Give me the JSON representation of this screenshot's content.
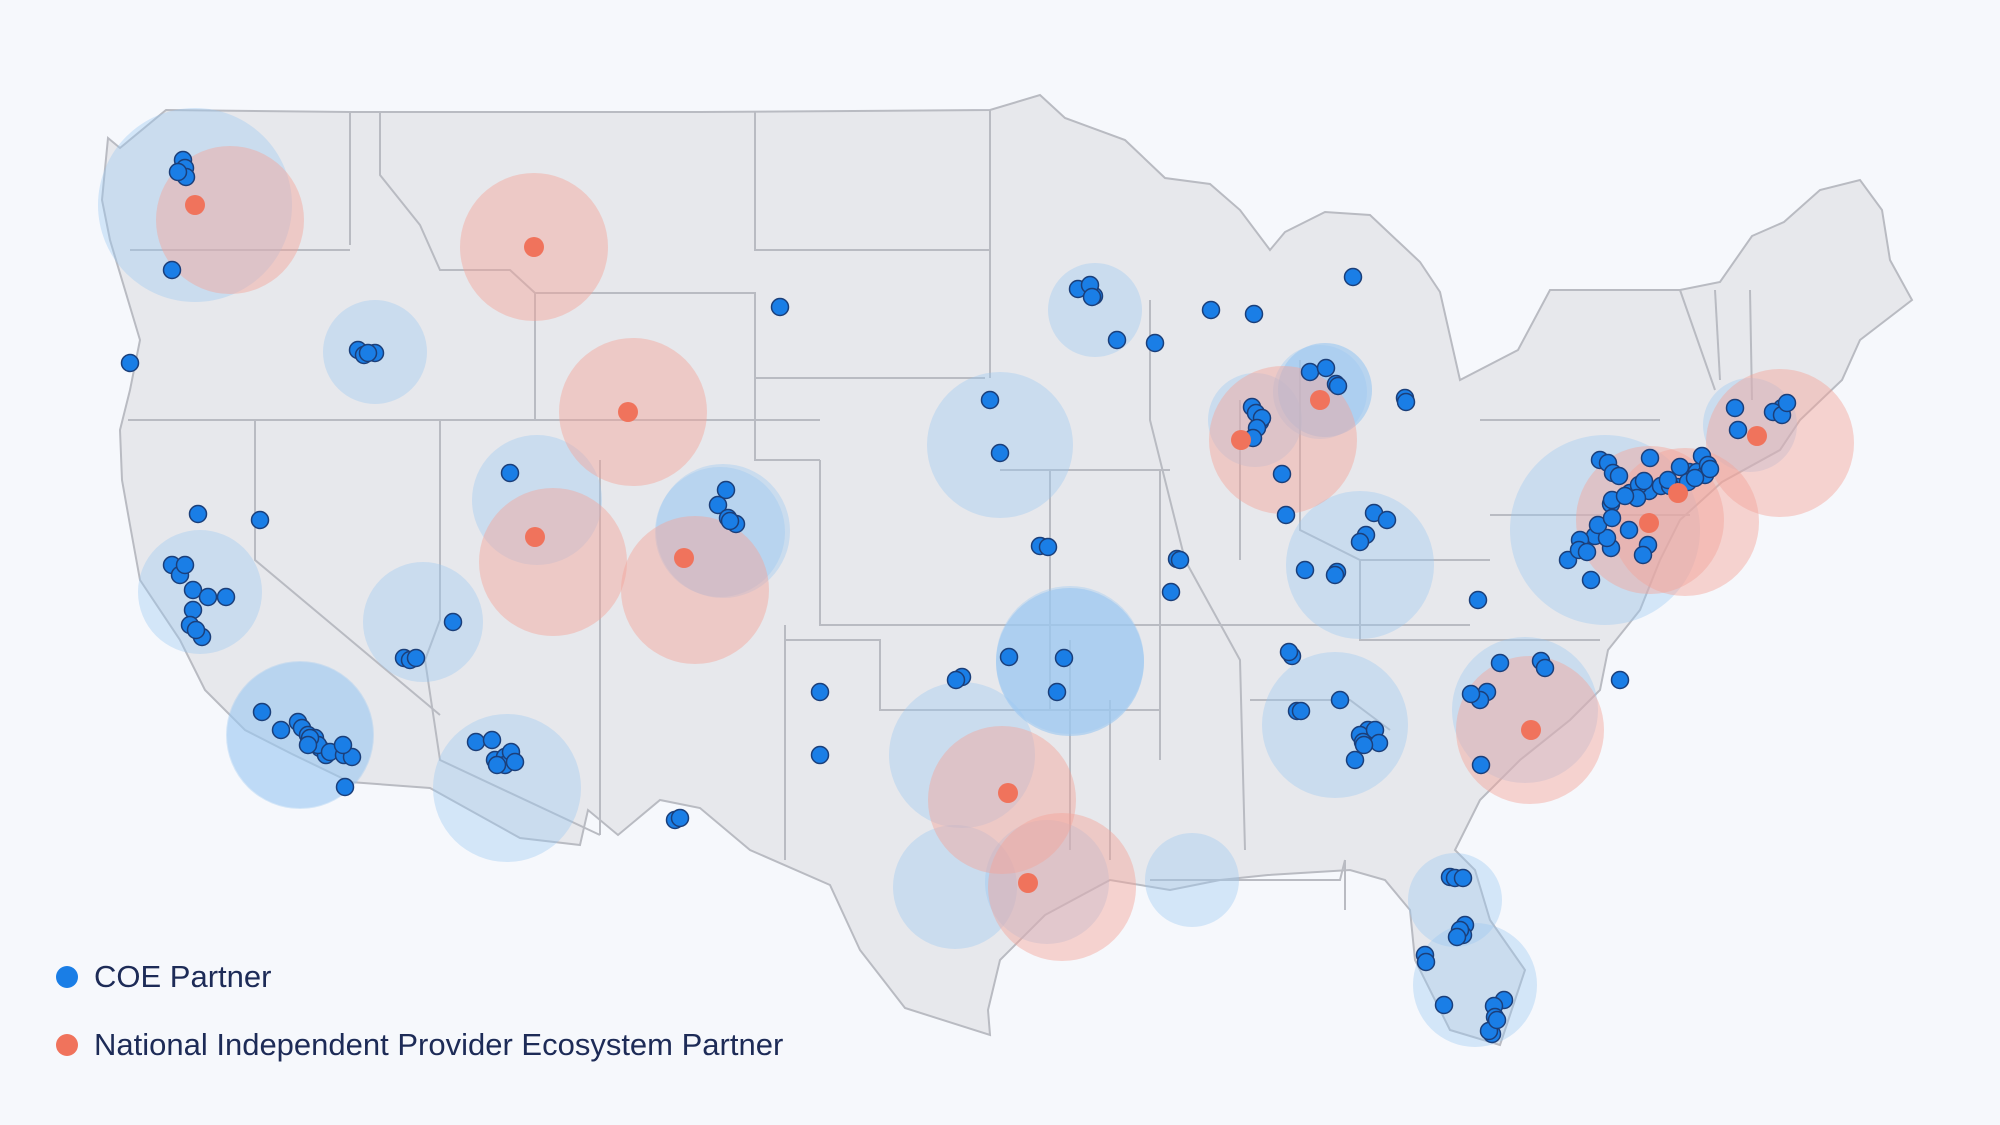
{
  "colors": {
    "background": "#f6f8fc",
    "land": "#e7e8ec",
    "border": "#b9bbc2",
    "coe": "#1a7ee6",
    "coe_halo": "#9cc8f3",
    "nipe": "#f0735c",
    "nipe_halo": "#f4a49a"
  },
  "legend": {
    "coe": "COE Partner",
    "nipe": "National Independent Provider Ecosystem Partner"
  }
}
